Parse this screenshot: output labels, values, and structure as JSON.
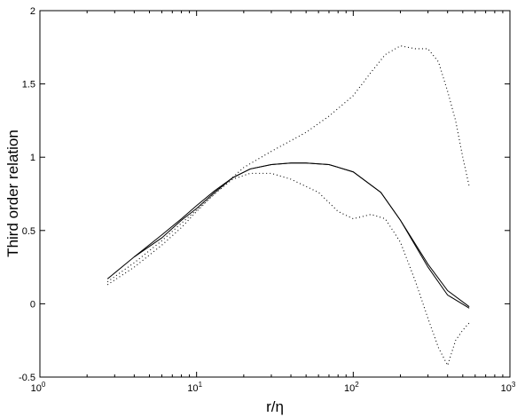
{
  "chart_data": {
    "type": "line",
    "xscale": "log",
    "xlim": [
      1,
      1000
    ],
    "ylim": [
      -0.5,
      2
    ],
    "xlabel": "r/η",
    "ylabel": "Third order relation",
    "xticks": [
      {
        "value": 1,
        "base": "10",
        "exp": "0"
      },
      {
        "value": 10,
        "base": "10",
        "exp": "1"
      },
      {
        "value": 100,
        "base": "10",
        "exp": "2"
      },
      {
        "value": 1000,
        "base": "10",
        "exp": "3"
      }
    ],
    "yticks": [
      {
        "value": -0.5,
        "label": "-0.5"
      },
      {
        "value": 0,
        "label": "0"
      },
      {
        "value": 0.5,
        "label": "0.5"
      },
      {
        "value": 1,
        "label": "1"
      },
      {
        "value": 1.5,
        "label": "1.5"
      },
      {
        "value": 2,
        "label": "2"
      }
    ],
    "grid": false,
    "series": [
      {
        "style": "solid",
        "color": "#000000",
        "x": [
          2.7,
          4,
          6,
          8,
          10,
          13,
          17,
          22,
          30,
          40,
          50,
          70,
          100,
          150,
          200,
          300,
          400,
          550
        ],
        "y": [
          0.17,
          0.32,
          0.45,
          0.57,
          0.65,
          0.76,
          0.86,
          0.92,
          0.95,
          0.96,
          0.96,
          0.95,
          0.9,
          0.76,
          0.57,
          0.27,
          0.09,
          -0.02
        ]
      },
      {
        "style": "solid",
        "color": "#000000",
        "x": [
          4,
          6,
          8,
          10,
          13,
          17,
          22,
          30,
          40,
          50,
          70,
          100,
          150,
          200,
          300,
          400,
          550
        ],
        "y": [
          0.32,
          0.47,
          0.58,
          0.67,
          0.77,
          0.86,
          0.92,
          0.95,
          0.96,
          0.96,
          0.95,
          0.9,
          0.76,
          0.57,
          0.25,
          0.06,
          -0.03
        ]
      },
      {
        "style": "dotted",
        "color": "#000000",
        "x": [
          2.7,
          4,
          6,
          8,
          10,
          13,
          17,
          22,
          30,
          40,
          60,
          80,
          100,
          130,
          160,
          200,
          250,
          300,
          350,
          400,
          450,
          500,
          550
        ],
        "y": [
          0.13,
          0.25,
          0.4,
          0.52,
          0.63,
          0.75,
          0.85,
          0.89,
          0.89,
          0.85,
          0.76,
          0.63,
          0.58,
          0.61,
          0.58,
          0.42,
          0.15,
          -0.1,
          -0.3,
          -0.42,
          -0.25,
          -0.18,
          -0.13
        ]
      },
      {
        "style": "dotted",
        "color": "#000000",
        "x": [
          2.7,
          4,
          6,
          8,
          10,
          15,
          20,
          30,
          50,
          70,
          100,
          130,
          160,
          200,
          250,
          300,
          350,
          400,
          450,
          500,
          550
        ],
        "y": [
          0.15,
          0.28,
          0.43,
          0.55,
          0.64,
          0.81,
          0.93,
          1.04,
          1.17,
          1.28,
          1.42,
          1.58,
          1.7,
          1.76,
          1.74,
          1.74,
          1.65,
          1.45,
          1.25,
          1.0,
          0.8
        ]
      }
    ]
  }
}
